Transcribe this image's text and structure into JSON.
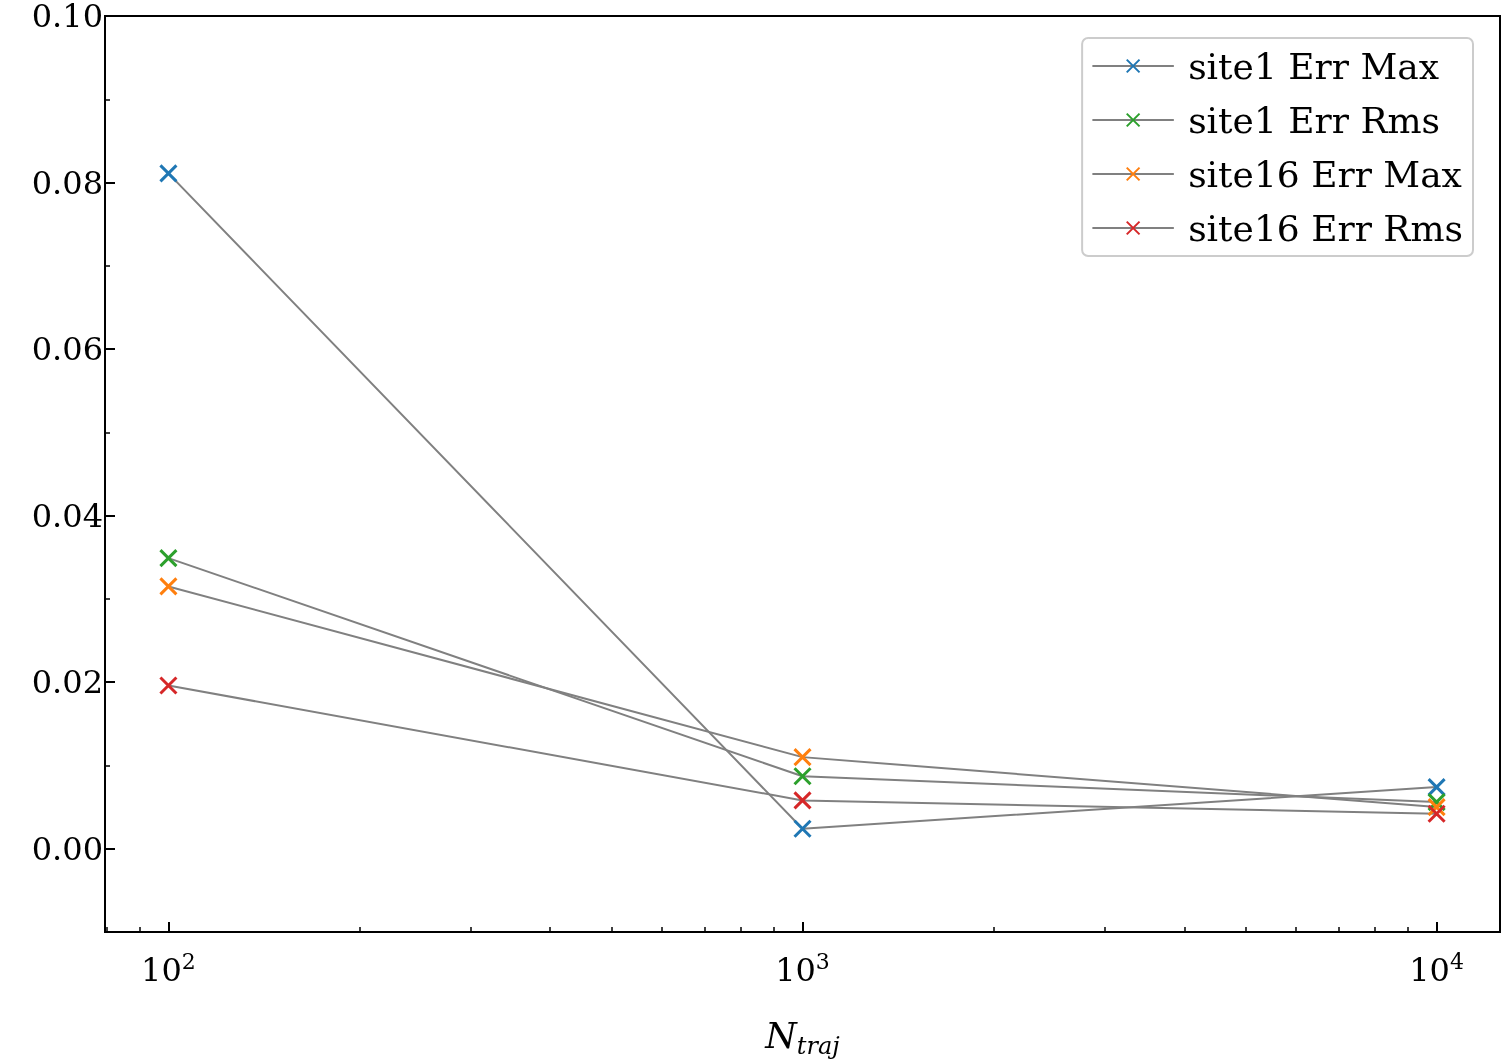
{
  "chart_data": {
    "type": "line",
    "xlabel": "N$_{traj}$",
    "log": "x",
    "marker": "cross",
    "line_style": "solid",
    "legend": "top right",
    "grid": false,
    "x": [
      100,
      1000,
      10000
    ],
    "series": [
      {
        "name": "site1 Err Max",
        "color": "#808080",
        "colors": [
          "#1f77b4",
          "#1f77b4",
          "#1f77b4"
        ],
        "values": [
          0.0811,
          0.0024,
          0.0074
        ]
      },
      {
        "name": "site1 Err Rms",
        "color": "#808080",
        "colors": [
          "#2ca02c",
          "#2ca02c",
          "#2ca02c"
        ],
        "values": [
          0.0349,
          0.0087,
          0.0056
        ]
      },
      {
        "name": "site16 Err Max",
        "color": "#808080",
        "colors": [
          "#ff7f0e",
          "#ff7f0e",
          "#ff7f0e"
        ],
        "values": [
          0.0315,
          0.011,
          0.005
        ]
      },
      {
        "name": "site16 Err Rms",
        "color": "#808080",
        "colors": [
          "#d62728",
          "#d62728",
          "#d62728"
        ],
        "values": [
          0.0196,
          0.0058,
          0.0042
        ]
      }
    ],
    "xlim": [
      79.43,
      12589
    ],
    "xticks": [
      {
        "value": 100,
        "label": "10$^{2}$"
      },
      {
        "value": 1000,
        "label": "10$^{3}$"
      },
      {
        "value": 10000,
        "label": "10$^{4}$"
      }
    ],
    "ylim": [
      -0.01,
      0.1
    ],
    "yticks": [
      {
        "value": 0,
        "label": "0.00"
      },
      {
        "value": 0.02,
        "label": "0.02"
      },
      {
        "value": 0.04,
        "label": "0.04"
      },
      {
        "value": 0.06,
        "label": "0.06"
      },
      {
        "value": 0.08,
        "label": "0.08"
      },
      {
        "value": 0.1,
        "label": "0.10"
      }
    ]
  }
}
